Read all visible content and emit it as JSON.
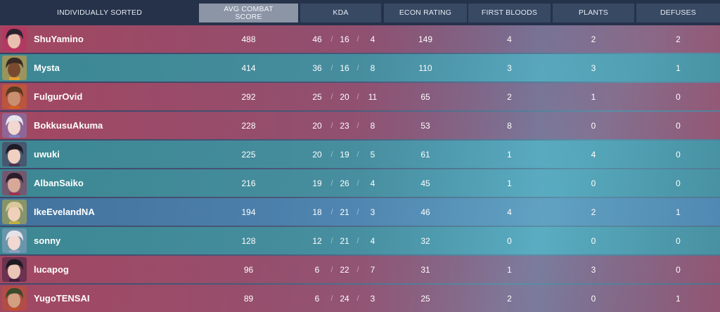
{
  "header": {
    "player_col": "INDIVIDUALLY SORTED",
    "acs_col": "AVG COMBAT SCORE",
    "kda_col": "KDA",
    "econ_col": "ECON RATING",
    "first_bloods_col": "FIRST BLOODS",
    "plants_col": "PLANTS",
    "defuses_col": "DEFUSES",
    "kda_separator": "/"
  },
  "players": [
    {
      "name": "ShuYamino",
      "acs": "488",
      "kills": "46",
      "deaths": "16",
      "assists": "4",
      "econ": "149",
      "first_bloods": "4",
      "plants": "2",
      "defuses": "2",
      "row_tint": "red",
      "agent_icon": "agent-portrait-icon"
    },
    {
      "name": "Mysta",
      "acs": "414",
      "kills": "36",
      "deaths": "16",
      "assists": "8",
      "econ": "110",
      "first_bloods": "3",
      "plants": "3",
      "defuses": "1",
      "row_tint": "teal",
      "agent_icon": "agent-portrait-icon"
    },
    {
      "name": "FulgurOvid",
      "acs": "292",
      "kills": "25",
      "deaths": "20",
      "assists": "11",
      "econ": "65",
      "first_bloods": "2",
      "plants": "1",
      "defuses": "0",
      "row_tint": "red",
      "agent_icon": "agent-portrait-icon"
    },
    {
      "name": "BokkusuAkuma",
      "acs": "228",
      "kills": "20",
      "deaths": "23",
      "assists": "8",
      "econ": "53",
      "first_bloods": "8",
      "plants": "0",
      "defuses": "0",
      "row_tint": "red",
      "agent_icon": "agent-portrait-icon"
    },
    {
      "name": "uwuki",
      "acs": "225",
      "kills": "20",
      "deaths": "19",
      "assists": "5",
      "econ": "61",
      "first_bloods": "1",
      "plants": "4",
      "defuses": "0",
      "row_tint": "teal",
      "agent_icon": "agent-portrait-icon"
    },
    {
      "name": "AlbanSaiko",
      "acs": "216",
      "kills": "19",
      "deaths": "26",
      "assists": "4",
      "econ": "45",
      "first_bloods": "1",
      "plants": "0",
      "defuses": "0",
      "row_tint": "teal",
      "agent_icon": "agent-portrait-icon"
    },
    {
      "name": "IkeEvelandNA",
      "acs": "194",
      "kills": "18",
      "deaths": "21",
      "assists": "3",
      "econ": "46",
      "first_bloods": "4",
      "plants": "2",
      "defuses": "1",
      "row_tint": "blue",
      "agent_icon": "agent-portrait-icon"
    },
    {
      "name": "sonny",
      "acs": "128",
      "kills": "12",
      "deaths": "21",
      "assists": "4",
      "econ": "32",
      "first_bloods": "0",
      "plants": "0",
      "defuses": "0",
      "row_tint": "teal",
      "agent_icon": "agent-portrait-icon"
    },
    {
      "name": "lucapog",
      "acs": "96",
      "kills": "6",
      "deaths": "22",
      "assists": "7",
      "econ": "31",
      "first_bloods": "1",
      "plants": "3",
      "defuses": "0",
      "row_tint": "red",
      "agent_icon": "agent-portrait-icon"
    },
    {
      "name": "YugoTENSAI",
      "acs": "89",
      "kills": "6",
      "deaths": "24",
      "assists": "3",
      "econ": "25",
      "first_bloods": "2",
      "plants": "0",
      "defuses": "1",
      "row_tint": "red",
      "agent_icon": "agent-portrait-icon"
    }
  ],
  "colors": {
    "header_bg": "#25324a",
    "header_cell_bg": "#3c4e68",
    "sorted_header_bg": "#8b95a6",
    "row_red": "#aa4862",
    "row_teal": "#3c8c96",
    "row_blue": "#4274a0",
    "text": "#ffffff"
  }
}
